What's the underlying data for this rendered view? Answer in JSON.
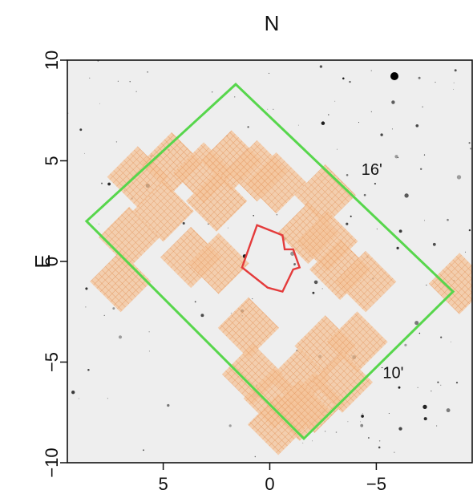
{
  "chart_data": {
    "type": "scatter",
    "title": "N",
    "xlabel": "",
    "ylabel": "E",
    "xlim": [
      9.5,
      -9.5
    ],
    "ylim": [
      -10,
      10
    ],
    "x_ticks": [
      5,
      0,
      -5
    ],
    "x_tick_labels": [
      "5",
      "0",
      "−5"
    ],
    "y_ticks": [
      10,
      5,
      0,
      -5,
      -10
    ],
    "y_tick_labels": [
      "10",
      "5",
      "0",
      "−5",
      "−10"
    ],
    "grid": false,
    "background": "grayscale sky image with stars",
    "outline_field": {
      "name": "",
      "color": "#57d64c",
      "vertices": [
        [
          8.6,
          2.0
        ],
        [
          1.6,
          8.8
        ],
        [
          -8.6,
          -1.5
        ],
        [
          -1.6,
          -8.8
        ]
      ]
    },
    "inner_region": {
      "name": "",
      "color": "#e43b3b",
      "vertices": [
        [
          0.6,
          1.8
        ],
        [
          -0.6,
          1.3
        ],
        [
          -0.7,
          0.6
        ],
        [
          -1.1,
          0.6
        ],
        [
          -1.4,
          -0.3
        ],
        [
          -1.1,
          -0.4
        ],
        [
          -0.6,
          -1.5
        ],
        [
          0.1,
          -1.3
        ],
        [
          1.3,
          -0.3
        ]
      ]
    },
    "tile_color": "#f0a36a",
    "tiles": [
      [
        6.2,
        4.2
      ],
      [
        4.6,
        4.9
      ],
      [
        5.0,
        2.5
      ],
      [
        3.1,
        4.4
      ],
      [
        1.8,
        5.0
      ],
      [
        0.6,
        4.5
      ],
      [
        -0.3,
        3.9
      ],
      [
        2.5,
        3.0
      ],
      [
        -2.6,
        3.3
      ],
      [
        6.6,
        1.2
      ],
      [
        -1.8,
        1.4
      ],
      [
        -2.7,
        1.0
      ],
      [
        3.7,
        0.2
      ],
      [
        2.4,
        -0.1
      ],
      [
        -3.3,
        -0.4
      ],
      [
        -4.5,
        -1.0
      ],
      [
        7.0,
        -1.0
      ],
      [
        -8.9,
        -1.1
      ],
      [
        1.0,
        -3.3
      ],
      [
        -2.6,
        -4.2
      ],
      [
        -4.1,
        -4.0
      ],
      [
        0.8,
        -5.6
      ],
      [
        -1.4,
        -5.8
      ],
      [
        -0.2,
        -6.8
      ],
      [
        -2.1,
        -7.0
      ],
      [
        -3.4,
        -6.0
      ],
      [
        -1.4,
        -7.4
      ],
      [
        -0.4,
        -8.1
      ]
    ],
    "annotations": [
      {
        "text": "16'",
        "x": -4.3,
        "y": 4.3
      },
      {
        "text": "10'",
        "x": -5.3,
        "y": -5.8
      }
    ]
  }
}
